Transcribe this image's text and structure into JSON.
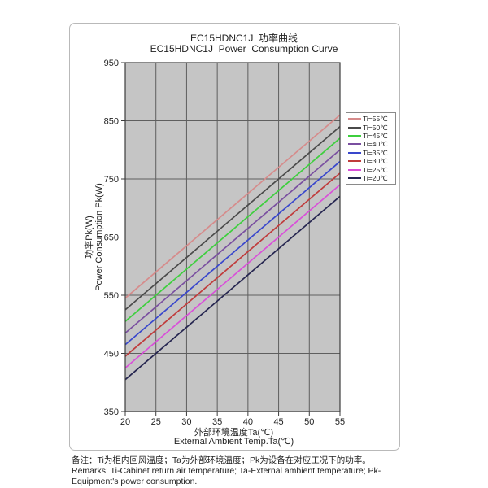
{
  "chart_data": {
    "type": "line",
    "title_zh": "EC15HDNC1J  功率曲线",
    "title_en": "EC15HDNC1J  Power  Consumption Curve",
    "xlabel_zh": "外部环境温度Ta(℃)",
    "xlabel_en": "External Ambient Temp.Ta(℃)",
    "ylabel_zh": "功率Pk(W)",
    "ylabel_en": "Power Consumption Pk(W)",
    "xlim": [
      20,
      55
    ],
    "ylim": [
      350,
      950
    ],
    "xticks": [
      20,
      25,
      30,
      35,
      40,
      45,
      50,
      55
    ],
    "yticks": [
      350,
      450,
      550,
      650,
      750,
      850,
      950
    ],
    "grid": true,
    "legend_position": "right",
    "plot_bg_color": "#c5c5c5",
    "grid_color": "#5f5f5f",
    "axis_color": "#3c3c3c",
    "x": [
      20,
      55
    ],
    "series": [
      {
        "name": "Ti=55℃",
        "color": "#d68b8b",
        "values": [
          545,
          860
        ]
      },
      {
        "name": "Ti=50℃",
        "color": "#4a4a4a",
        "values": [
          525,
          840
        ]
      },
      {
        "name": "Ti=45℃",
        "color": "#3ecf3e",
        "values": [
          505,
          820
        ]
      },
      {
        "name": "Ti=40℃",
        "color": "#7a4fa0",
        "values": [
          485,
          800
        ]
      },
      {
        "name": "Ti=35℃",
        "color": "#3947cc",
        "values": [
          465,
          780
        ]
      },
      {
        "name": "Ti=30℃",
        "color": "#c03c3c",
        "values": [
          445,
          760
        ]
      },
      {
        "name": "Ti=25℃",
        "color": "#d94fd9",
        "values": [
          425,
          740
        ]
      },
      {
        "name": "Ti=20℃",
        "color": "#262650",
        "values": [
          405,
          720
        ]
      }
    ]
  },
  "remarks": {
    "zh": "备注：Ti为柜内回风温度；Ta为外部环境温度；Pk为设备在对应工况下的功率。",
    "en": "Remarks: Ti-Cabinet return air temperature; Ta-External ambient temperature; Pk-Equipment's power consumption."
  }
}
